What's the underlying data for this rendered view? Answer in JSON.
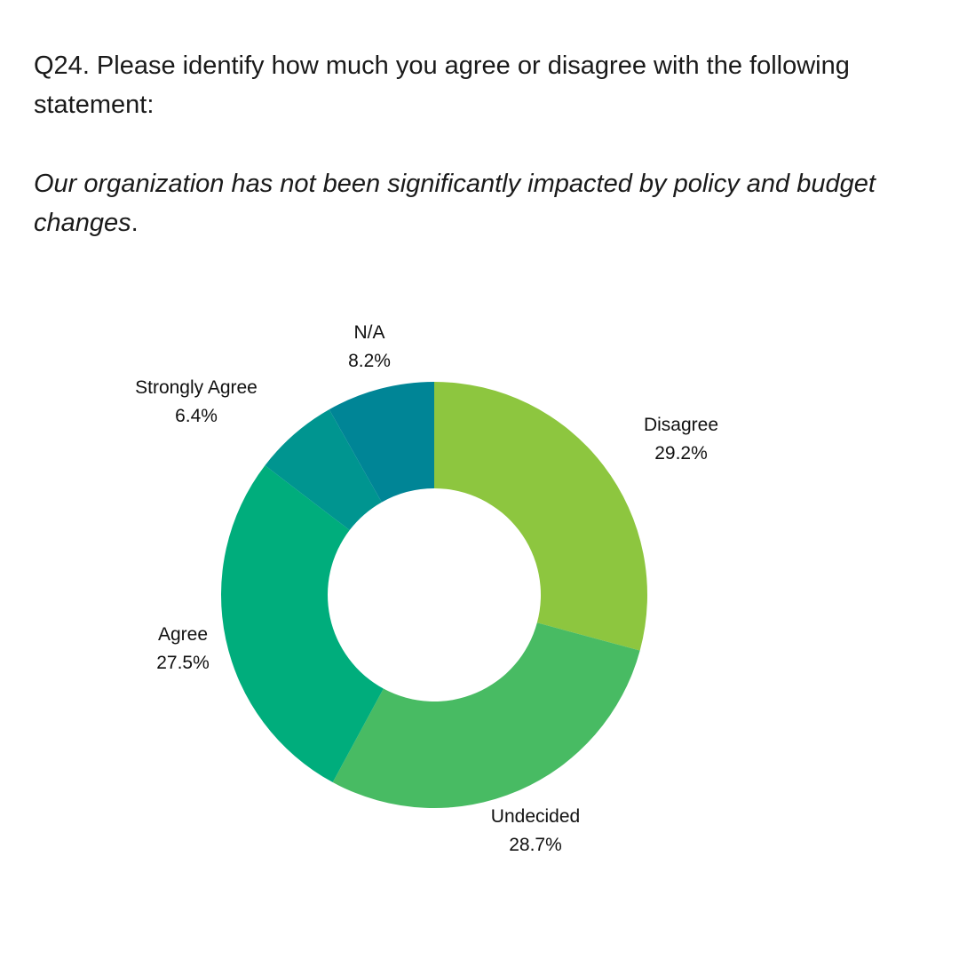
{
  "question": "Q24. Please identify how much you agree or disagree with the following statement:",
  "statement_italic": "Our organization has not been significantly impacted by policy and budget changes",
  "statement_end": ".",
  "chart_data": {
    "type": "pie",
    "subtype": "donut",
    "categories": [
      "Disagree",
      "Undecided",
      "Agree",
      "Strongly Agree",
      "N/A"
    ],
    "values": [
      29.2,
      28.7,
      27.5,
      6.4,
      8.2
    ],
    "value_labels": [
      "29.2%",
      "28.7%",
      "27.5%",
      "6.4%",
      "8.2%"
    ],
    "colors": [
      "#8dc63f",
      "#48bb63",
      "#00ad7c",
      "#009590",
      "#008596"
    ],
    "start": "12 o'clock",
    "direction": "clockwise",
    "legend": "none"
  }
}
